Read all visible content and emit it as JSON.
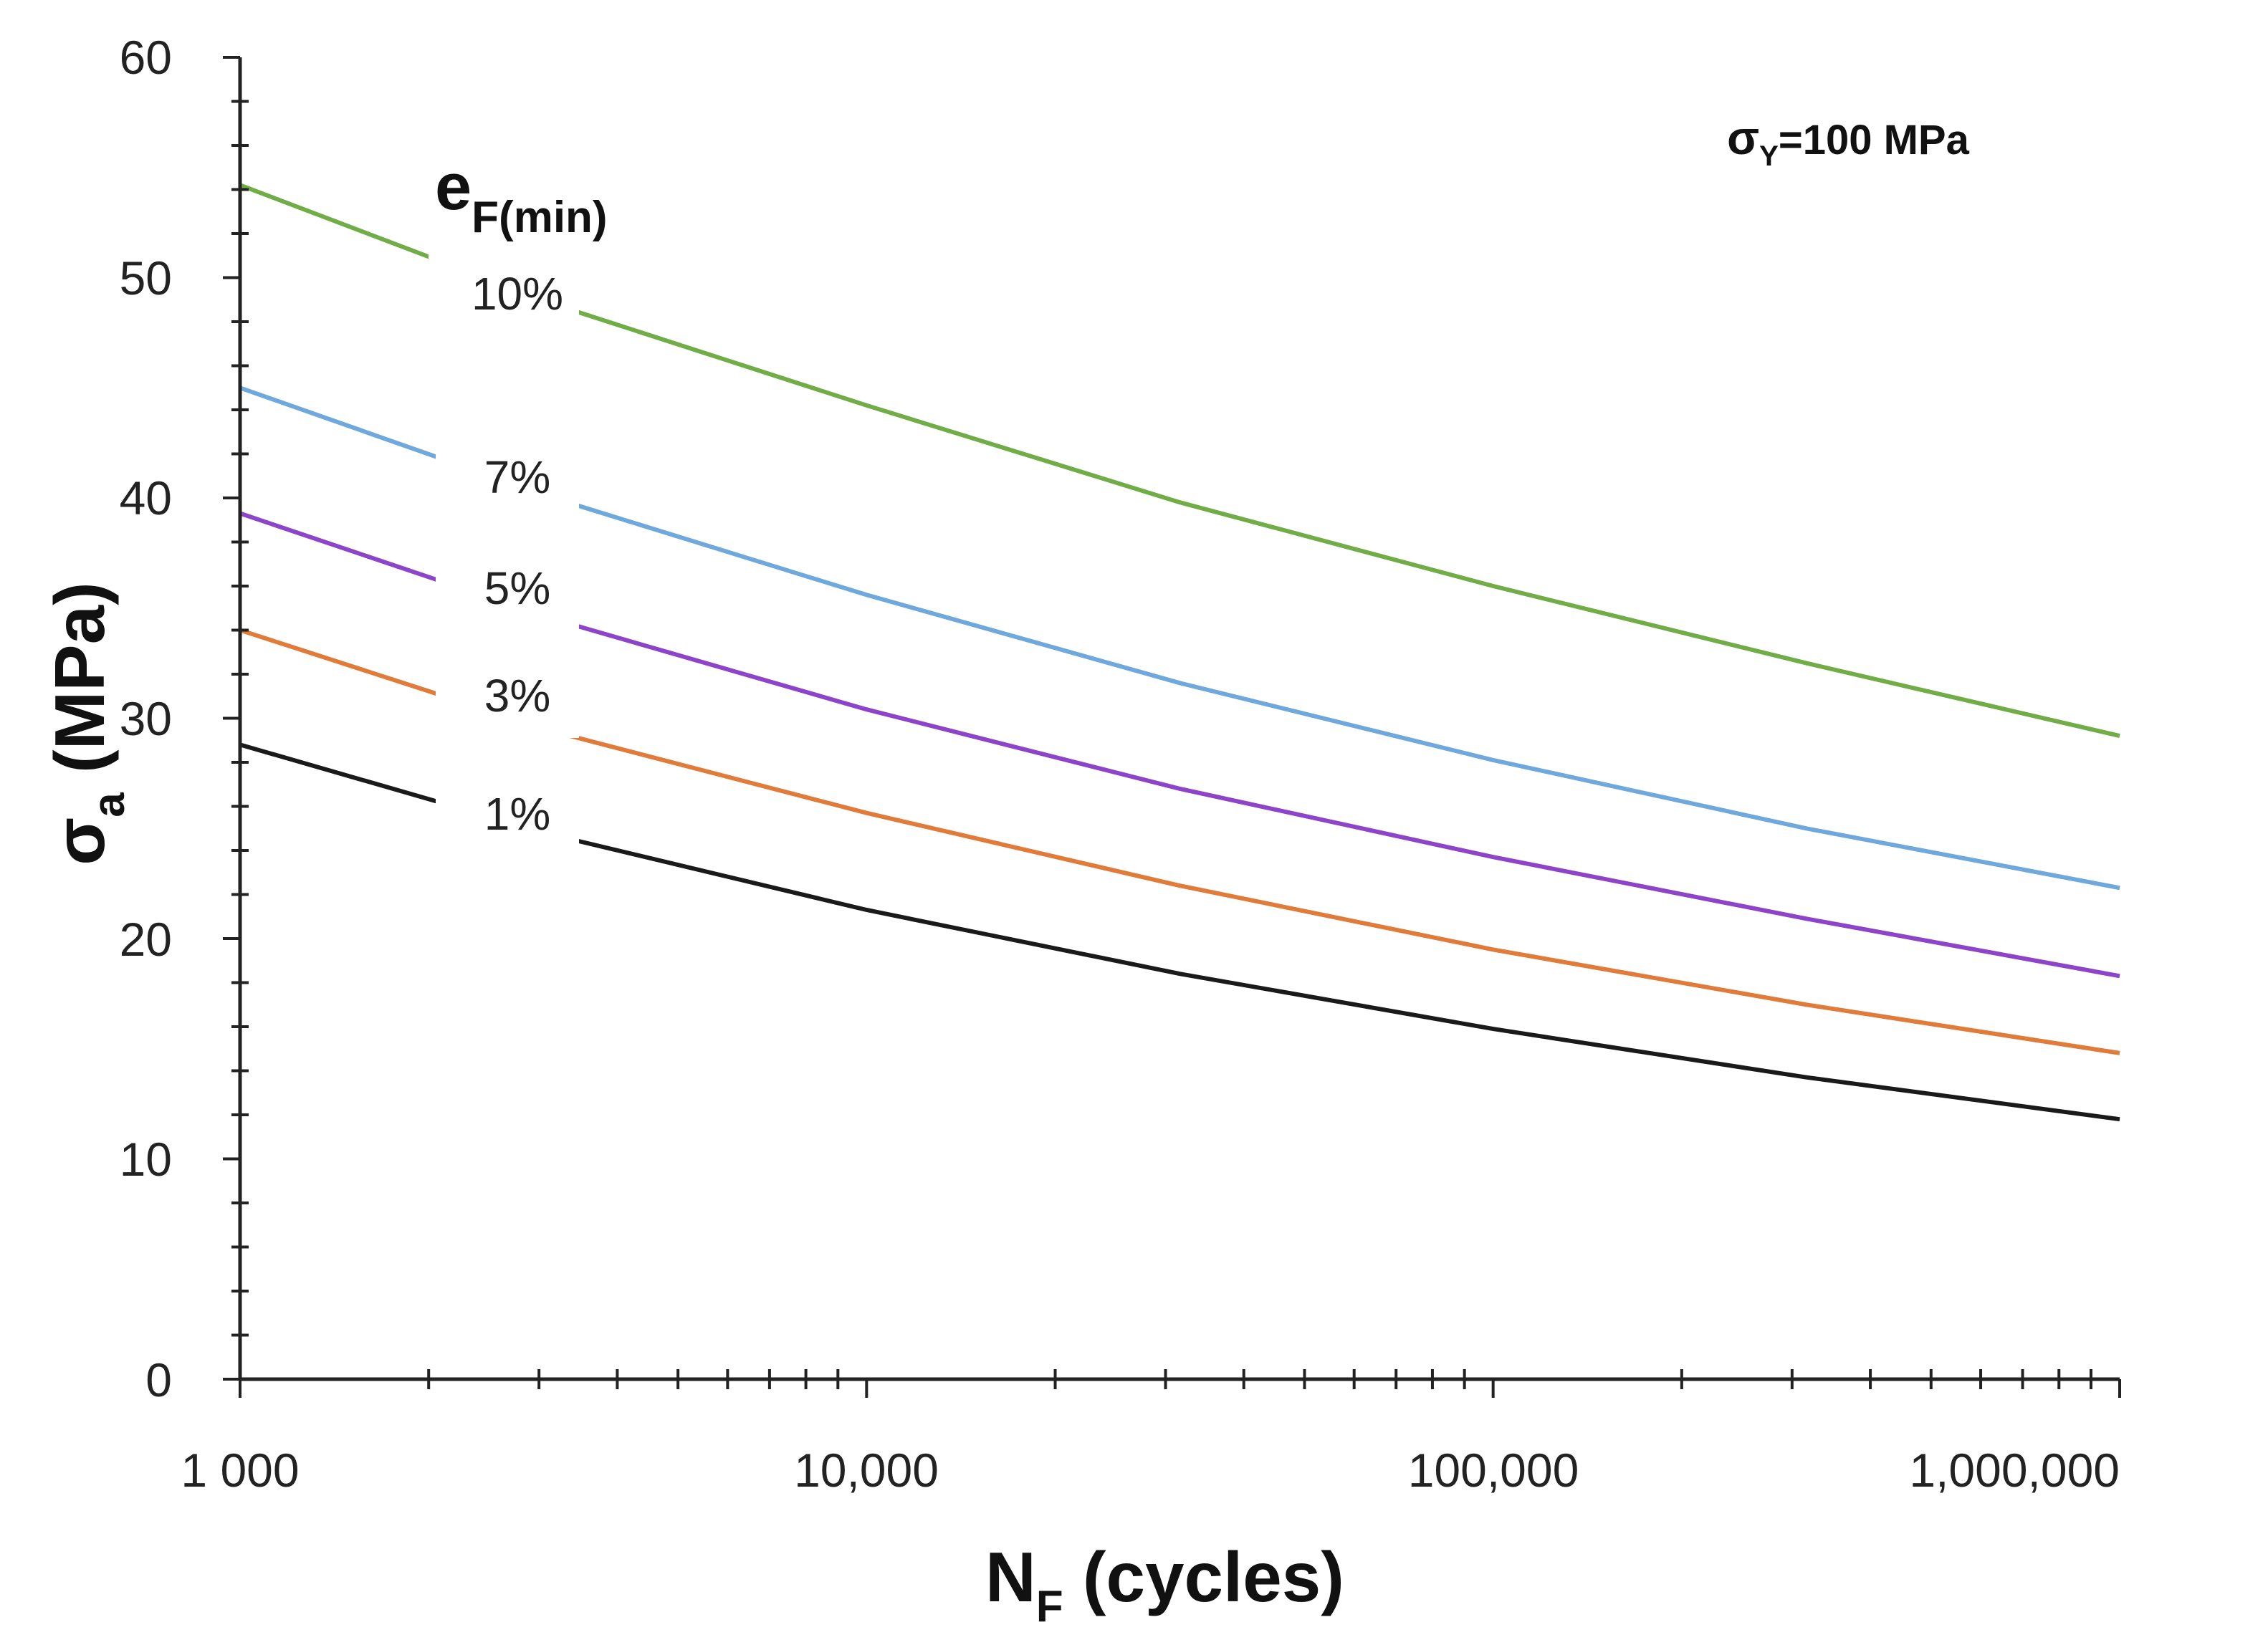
{
  "chart_data": {
    "type": "line",
    "x_scale": "log",
    "xlim": [
      1000,
      1000000
    ],
    "ylim": [
      0,
      60
    ],
    "y_ticks": [
      0,
      10,
      20,
      30,
      40,
      50,
      60
    ],
    "x_tick_values": [
      1000,
      10000,
      100000,
      1000000
    ],
    "x_tick_labels": [
      "1 000",
      "10,000",
      "100,000",
      "1,000,000"
    ],
    "xlabel": {
      "main": "N",
      "sub": "F",
      "rest": " (cycles)"
    },
    "ylabel": {
      "main": "σ",
      "sub": "a",
      "rest": " (MPa)"
    },
    "annotation": {
      "main": "σ",
      "sub": "Y",
      "rest": "=100 MPa"
    },
    "legend_title": {
      "main": "e",
      "sub": "F(min)"
    },
    "x": [
      1000,
      3162,
      10000,
      31623,
      100000,
      316228,
      1000000
    ],
    "series": [
      {
        "name": "10%",
        "color": "#70ad47",
        "values": [
          54.2,
          48.8,
          44.2,
          39.8,
          36.0,
          32.5,
          29.2
        ]
      },
      {
        "name": "7%",
        "color": "#6fa8dc",
        "values": [
          45.0,
          40.0,
          35.6,
          31.6,
          28.1,
          25.0,
          22.3
        ]
      },
      {
        "name": "5%",
        "color": "#8e44c8",
        "values": [
          39.3,
          34.5,
          30.4,
          26.8,
          23.7,
          20.9,
          18.3
        ]
      },
      {
        "name": "3%",
        "color": "#e07b39",
        "values": [
          34.0,
          29.4,
          25.7,
          22.4,
          19.5,
          17.0,
          14.8
        ]
      },
      {
        "name": "1%",
        "color": "#1a1a1a",
        "values": [
          28.8,
          24.7,
          21.3,
          18.4,
          15.9,
          13.7,
          11.8
        ]
      }
    ]
  }
}
